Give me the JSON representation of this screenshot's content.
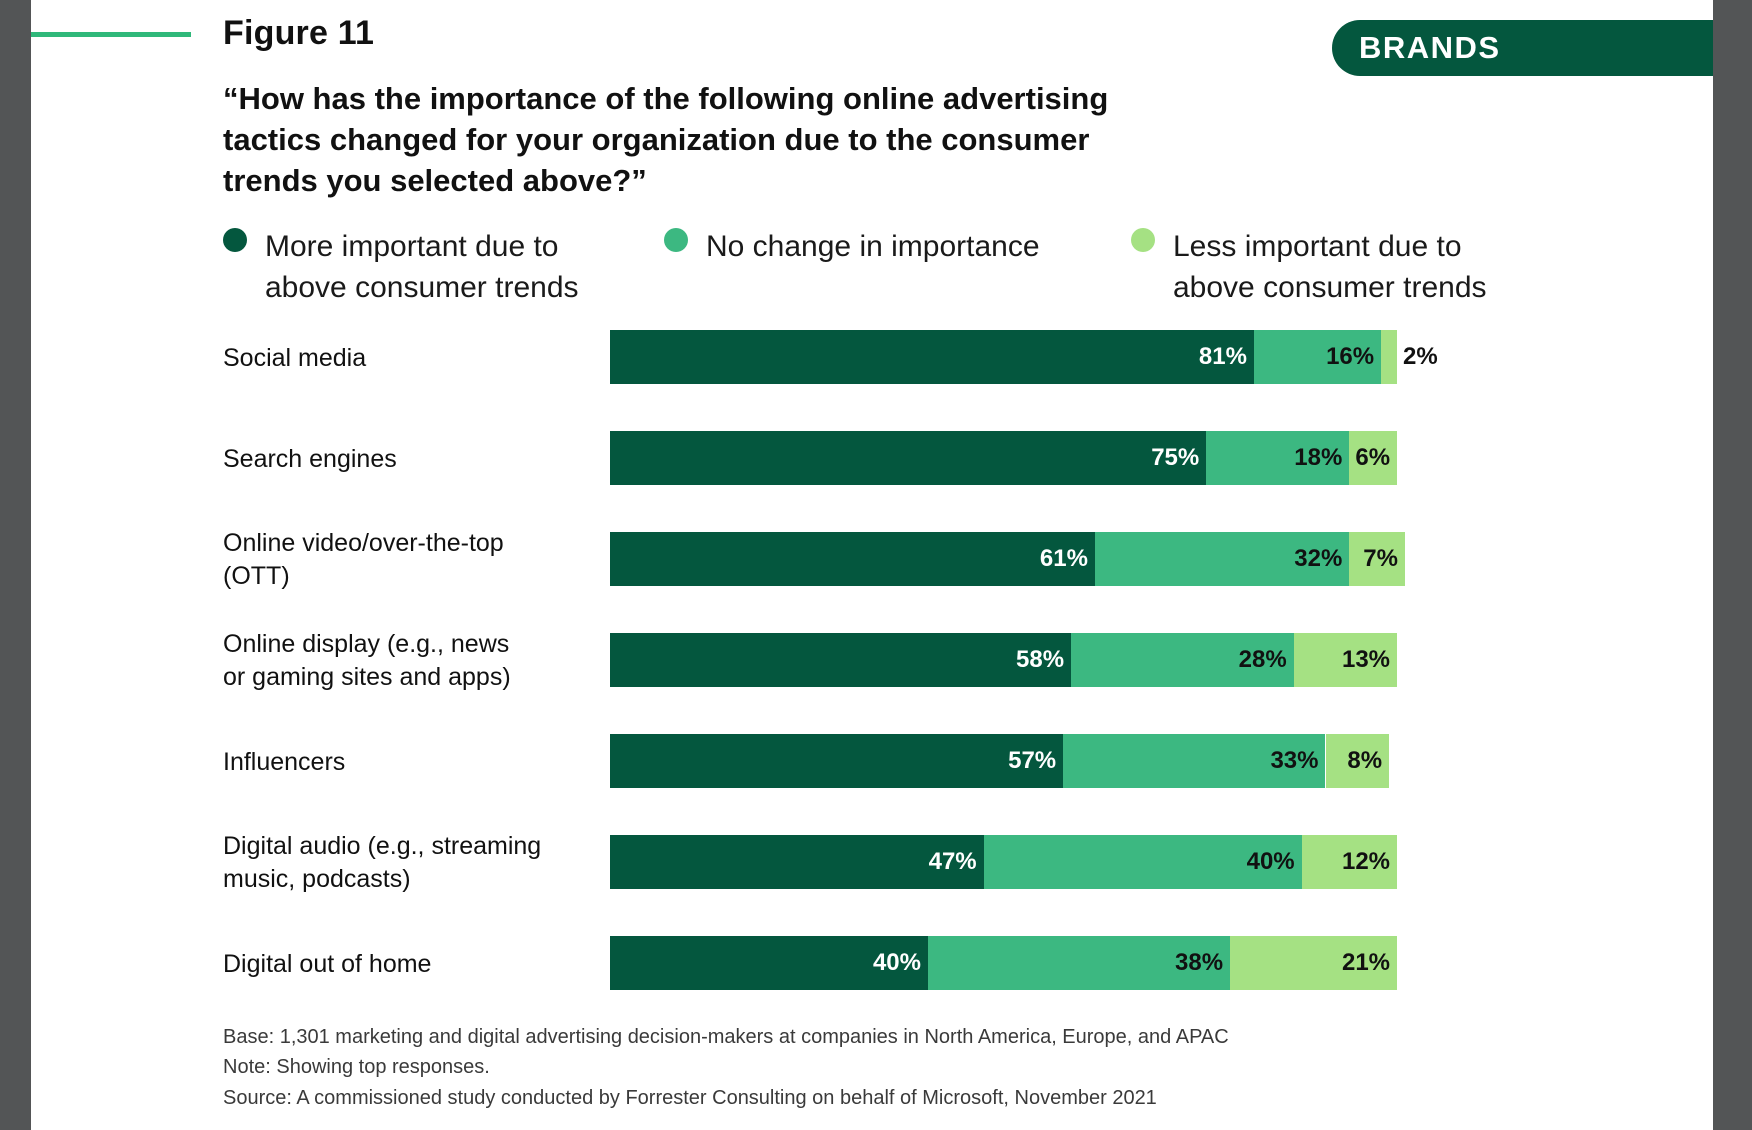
{
  "header": {
    "figure_label": "Figure 11",
    "section_tag": "BRANDS",
    "question": "“How has the importance of the following online advertising tactics changed for your organization due to the consumer trends you selected above?”"
  },
  "colors": {
    "more": "#04573e",
    "no_change": "#3cb881",
    "less": "#a5e183",
    "accent_line": "#2fb87a",
    "tag_bg": "#04573e"
  },
  "legend": [
    {
      "label_line1": "More important due to",
      "label_line2": "above consumer trends",
      "color": "#04573e"
    },
    {
      "label_line1": "No change in importance",
      "label_line2": "",
      "color": "#3cb881"
    },
    {
      "label_line1": "Less important due to",
      "label_line2": "above consumer trends",
      "color": "#a5e183"
    }
  ],
  "chart_data": {
    "type": "bar",
    "orientation": "horizontal",
    "stacked": true,
    "title": "“How has the importance of the following online advertising tactics changed for your organization due to the consumer trends you selected above?”",
    "categories": [
      "Social media",
      "Search engines",
      "Online video/over-the-top (OTT)",
      "Online display (e.g., news or gaming sites and apps)",
      "Influencers",
      "Digital audio (e.g., streaming music, podcasts)",
      "Digital out of home"
    ],
    "category_lines": [
      [
        "Social media"
      ],
      [
        "Search engines"
      ],
      [
        "Online video/over-the-top",
        "(OTT)"
      ],
      [
        "Online display (e.g., news",
        "or gaming sites and apps)"
      ],
      [
        "Influencers"
      ],
      [
        "Digital audio (e.g., streaming",
        "music, podcasts)"
      ],
      [
        "Digital out of home"
      ]
    ],
    "series": [
      {
        "name": "More important due to above consumer trends",
        "values": [
          81,
          75,
          61,
          58,
          57,
          47,
          40
        ],
        "labels": [
          "81%",
          "75%",
          "61%",
          "58%",
          "57%",
          "47%",
          "40%"
        ]
      },
      {
        "name": "No change in importance",
        "values": [
          16,
          18,
          32,
          28,
          33,
          40,
          38
        ],
        "labels": [
          "16%",
          "18%",
          "32%",
          "28%",
          "33%",
          "40%",
          "38%"
        ]
      },
      {
        "name": "Less important due to above consumer trends",
        "values": [
          2,
          6,
          7,
          13,
          8,
          12,
          21
        ],
        "labels": [
          "2%",
          "6%",
          "7%",
          "13%",
          "8%",
          "12%",
          "21%"
        ]
      }
    ],
    "unit": "%",
    "xlim": [
      0,
      100
    ],
    "legend_position": "top"
  },
  "footnotes": {
    "base": "Base: 1,301 marketing and digital advertising decision-makers at companies in North America, Europe, and APAC",
    "note": "Note: Showing top responses.",
    "source": "Source: A commissioned study conducted by Forrester Consulting on behalf of Microsoft, November 2021"
  }
}
